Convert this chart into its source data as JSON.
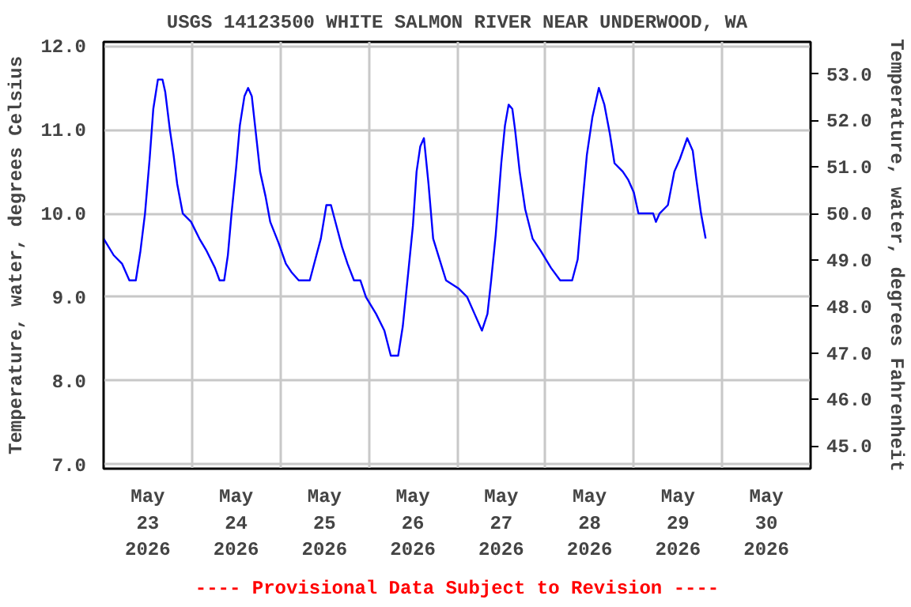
{
  "chart_data": {
    "type": "line",
    "title": "USGS 14123500 WHITE SALMON RIVER NEAR UNDERWOOD, WA",
    "ylabel": "Temperature, water, degrees Celsius",
    "y2label": "Temperature, water, degrees Fahrenheit",
    "annotations": [
      "---- Provisional Data Subject to Revision ----"
    ],
    "xlim": [
      "2026-05-23T00:00",
      "2026-05-31T00:00"
    ],
    "xticks": [
      {
        "value": "2026-05-23T12:00",
        "label": "May\n23\n2026"
      },
      {
        "value": "2026-05-24T00:00",
        "label": null
      },
      {
        "value": "2026-05-24T12:00",
        "label": "May\n24\n2026"
      },
      {
        "value": "2026-05-25T00:00",
        "label": null
      },
      {
        "value": "2026-05-25T12:00",
        "label": "May\n25\n2026"
      },
      {
        "value": "2026-05-26T00:00",
        "label": null
      },
      {
        "value": "2026-05-26T12:00",
        "label": "May\n26\n2026"
      },
      {
        "value": "2026-05-27T00:00",
        "label": null
      },
      {
        "value": "2026-05-27T12:00",
        "label": "May\n27\n2026"
      },
      {
        "value": "2026-05-28T00:00",
        "label": null
      },
      {
        "value": "2026-05-28T12:00",
        "label": "May\n28\n2026"
      },
      {
        "value": "2026-05-29T00:00",
        "label": null
      },
      {
        "value": "2026-05-29T12:00",
        "label": "May\n29\n2026"
      },
      {
        "value": "2026-05-30T00:00",
        "label": null
      },
      {
        "value": "2026-05-30T12:00",
        "label": "May\n30\n2026"
      }
    ],
    "ylim": [
      6.95,
      12.05
    ],
    "yticks": [
      {
        "value": 7,
        "label": "7.0"
      },
      {
        "value": 8,
        "label": "8.0"
      },
      {
        "value": 9,
        "label": "9.0"
      },
      {
        "value": 10,
        "label": "10.0"
      },
      {
        "value": 11,
        "label": "11.0"
      },
      {
        "value": 12,
        "label": "12.0"
      }
    ],
    "y2lim": [
      44.51,
      53.69
    ],
    "y2ticks": [
      {
        "value": 45,
        "label": "45.0"
      },
      {
        "value": 46,
        "label": "46.0"
      },
      {
        "value": 47,
        "label": "47.0"
      },
      {
        "value": 48,
        "label": "48.0"
      },
      {
        "value": 49,
        "label": "49.0"
      },
      {
        "value": 50,
        "label": "50.0"
      },
      {
        "value": 51,
        "label": "51.0"
      },
      {
        "value": 52,
        "label": "52.0"
      },
      {
        "value": 53,
        "label": "53.0"
      }
    ],
    "grid": true,
    "series": [
      {
        "color": "#0000ff",
        "x": [
          "2026-05-23T00:00",
          "2026-05-23T02:45",
          "2026-05-23T05:00",
          "2026-05-23T07:00",
          "2026-05-23T08:45",
          "2026-05-23T10:00",
          "2026-05-23T11:15",
          "2026-05-23T12:30",
          "2026-05-23T13:30",
          "2026-05-23T14:45",
          "2026-05-23T16:00",
          "2026-05-23T16:45",
          "2026-05-23T18:00",
          "2026-05-23T19:00",
          "2026-05-23T20:00",
          "2026-05-23T21:30",
          "2026-05-23T23:45",
          "2026-05-24T02:00",
          "2026-05-24T04:00",
          "2026-05-24T06:15",
          "2026-05-24T07:30",
          "2026-05-24T08:45",
          "2026-05-24T09:45",
          "2026-05-24T10:45",
          "2026-05-24T12:00",
          "2026-05-24T13:00",
          "2026-05-24T14:15",
          "2026-05-24T15:15",
          "2026-05-24T16:15",
          "2026-05-24T17:15",
          "2026-05-24T18:30",
          "2026-05-24T20:00",
          "2026-05-24T21:15",
          "2026-05-24T23:30",
          "2026-05-25T01:30",
          "2026-05-25T03:00",
          "2026-05-25T05:00",
          "2026-05-25T08:00",
          "2026-05-25T09:30",
          "2026-05-25T11:00",
          "2026-05-25T12:30",
          "2026-05-25T13:45",
          "2026-05-25T15:15",
          "2026-05-25T16:45",
          "2026-05-25T18:15",
          "2026-05-25T20:00",
          "2026-05-25T21:45",
          "2026-05-25T23:15",
          "2026-05-26T02:00",
          "2026-05-26T04:15",
          "2026-05-26T06:00",
          "2026-05-26T08:00",
          "2026-05-26T09:15",
          "2026-05-26T10:45",
          "2026-05-26T12:00",
          "2026-05-26T13:00",
          "2026-05-26T14:00",
          "2026-05-26T15:00",
          "2026-05-26T16:15",
          "2026-05-26T17:30",
          "2026-05-26T19:15",
          "2026-05-26T21:00",
          "2026-05-27T00:30",
          "2026-05-27T02:45",
          "2026-05-27T04:45",
          "2026-05-27T06:45",
          "2026-05-27T08:15",
          "2026-05-27T09:15",
          "2026-05-27T10:30",
          "2026-05-27T12:00",
          "2026-05-27T13:00",
          "2026-05-27T14:00",
          "2026-05-27T15:00",
          "2026-05-27T15:45",
          "2026-05-27T17:00",
          "2026-05-27T18:30",
          "2026-05-27T20:30",
          "2026-05-27T22:45",
          "2026-05-28T01:30",
          "2026-05-28T04:00",
          "2026-05-28T07:15",
          "2026-05-28T08:45",
          "2026-05-28T10:00",
          "2026-05-28T11:15",
          "2026-05-28T12:45",
          "2026-05-28T14:30",
          "2026-05-28T16:00",
          "2026-05-28T17:30",
          "2026-05-28T18:45",
          "2026-05-28T21:00",
          "2026-05-28T22:30",
          "2026-05-29T00:00",
          "2026-05-29T01:15",
          "2026-05-29T05:15",
          "2026-05-29T06:00",
          "2026-05-29T07:00",
          "2026-05-29T09:15",
          "2026-05-29T11:00",
          "2026-05-29T12:30",
          "2026-05-29T14:30",
          "2026-05-29T16:00",
          "2026-05-29T17:00",
          "2026-05-29T18:15",
          "2026-05-29T19:30"
        ],
        "values": [
          9.7,
          9.5,
          9.4,
          9.2,
          9.2,
          9.55,
          10.0,
          10.65,
          11.25,
          11.6,
          11.6,
          11.45,
          11.0,
          10.7,
          10.35,
          10.0,
          9.9,
          9.7,
          9.55,
          9.35,
          9.2,
          9.2,
          9.5,
          10.0,
          10.55,
          11.05,
          11.4,
          11.5,
          11.4,
          11.0,
          10.5,
          10.2,
          9.9,
          9.65,
          9.4,
          9.3,
          9.2,
          9.2,
          9.45,
          9.7,
          10.1,
          10.1,
          9.85,
          9.6,
          9.4,
          9.2,
          9.2,
          9.0,
          8.8,
          8.6,
          8.3,
          8.3,
          8.65,
          9.3,
          9.85,
          10.5,
          10.8,
          10.9,
          10.35,
          9.7,
          9.45,
          9.2,
          9.1,
          9.0,
          8.8,
          8.6,
          8.8,
          9.2,
          9.75,
          10.6,
          11.05,
          11.3,
          11.25,
          11.0,
          10.5,
          10.05,
          9.7,
          9.55,
          9.35,
          9.2,
          9.2,
          9.45,
          10.1,
          10.7,
          11.15,
          11.5,
          11.3,
          10.95,
          10.6,
          10.5,
          10.4,
          10.25,
          10.0,
          10.0,
          9.9,
          10.0,
          10.1,
          10.5,
          10.65,
          10.9,
          10.75,
          10.4,
          10.0,
          9.7
        ]
      }
    ]
  }
}
